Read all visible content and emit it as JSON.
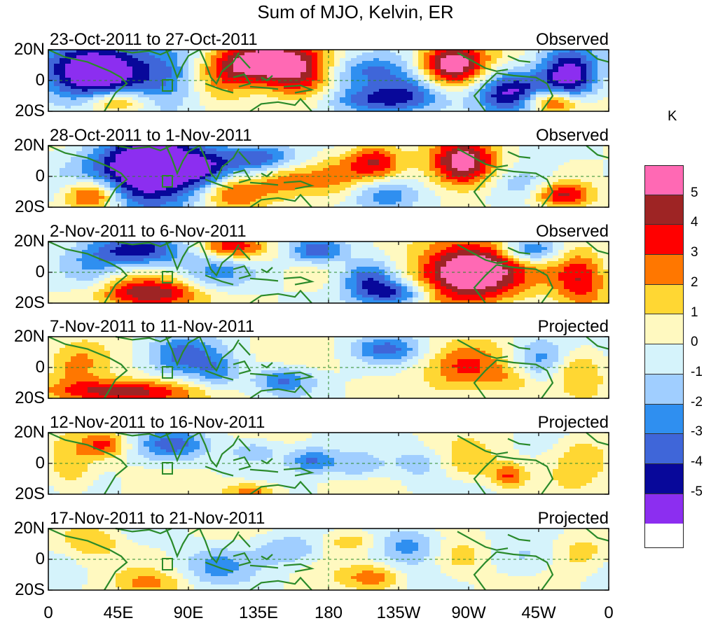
{
  "title": "Sum of MJO, Kelvin, ER",
  "panels": [
    {
      "period": "23-Oct-2011 to 27-Oct-2011",
      "status": "Observed"
    },
    {
      "period": "28-Oct-2011 to 1-Nov-2011",
      "status": "Observed"
    },
    {
      "period": "2-Nov-2011 to 6-Nov-2011",
      "status": "Observed"
    },
    {
      "period": "7-Nov-2011 to 11-Nov-2011",
      "status": "Projected"
    },
    {
      "period": "12-Nov-2011 to 16-Nov-2011",
      "status": "Projected"
    },
    {
      "period": "17-Nov-2011 to 21-Nov-2011",
      "status": "Projected"
    }
  ],
  "lat_labels": [
    "20N",
    "0",
    "20S"
  ],
  "lon_labels": [
    "0",
    "45E",
    "90E",
    "135E",
    "180",
    "135W",
    "90W",
    "45W",
    "0"
  ],
  "colorbar": {
    "unit": "K",
    "labels": [
      "5",
      "4",
      "3",
      "2",
      "1",
      "0",
      "-1",
      "-2",
      "-3",
      "-4",
      "-5"
    ],
    "colors": [
      "#ff69b4",
      "#9e2424",
      "#ff0000",
      "#ff7700",
      "#ffd733",
      "#fff9c0",
      "#d5f3fb",
      "#a0ceff",
      "#2f8ff0",
      "#3f66d9",
      "#08089a",
      "#8c2ef0"
    ]
  },
  "colors": {
    "coastline": "#2a8a2a",
    "grid": "#2a8a2a"
  }
}
